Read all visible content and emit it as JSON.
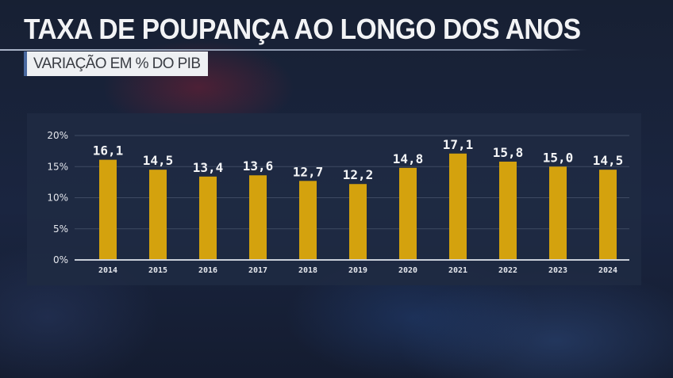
{
  "header": {
    "title": "TAXA DE POUPANÇA AO LONGO DOS ANOS",
    "subtitle": "VARIAÇÃO EM % DO PIB"
  },
  "colors": {
    "bar": "#d4a20e",
    "panel": "#1e2a42",
    "background": "#172033"
  },
  "chart_data": {
    "type": "bar",
    "title": "TAXA DE POUPANÇA AO LONGO DOS ANOS",
    "subtitle": "VARIAÇÃO EM % DO PIB",
    "categories": [
      "2014",
      "2015",
      "2016",
      "2017",
      "2018",
      "2019",
      "2020",
      "2021",
      "2022",
      "2023",
      "2024"
    ],
    "values": [
      16.1,
      14.5,
      13.4,
      13.6,
      12.7,
      12.2,
      14.8,
      17.1,
      15.8,
      15.0,
      14.5
    ],
    "data_labels": [
      "16,1",
      "14,5",
      "13,4",
      "13,6",
      "12,7",
      "12,2",
      "14,8",
      "17,1",
      "15,8",
      "15,0",
      "14,5"
    ],
    "yticks": [
      "0%",
      "5%",
      "10%",
      "15%",
      "20%"
    ],
    "ytick_values": [
      0,
      5,
      10,
      15,
      20
    ],
    "ylim": [
      0,
      20
    ],
    "xlabel": "",
    "ylabel": "",
    "grid": true,
    "legend": "none"
  }
}
